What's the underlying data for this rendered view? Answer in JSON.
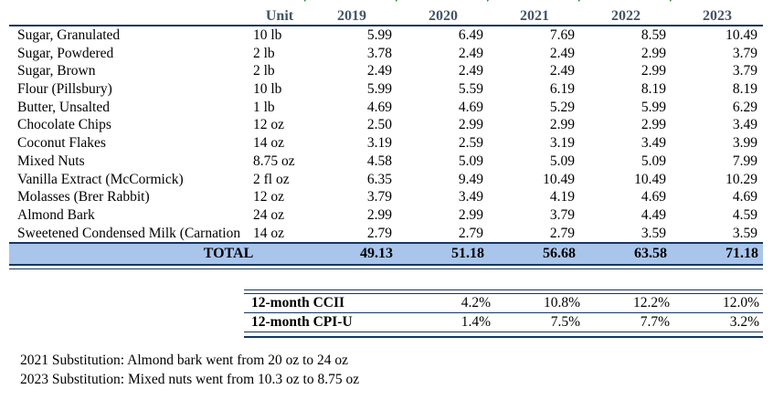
{
  "header": {
    "unit": "Unit",
    "years": [
      "2019",
      "2020",
      "2021",
      "2022",
      "2023"
    ]
  },
  "items": [
    {
      "name": "Sugar, Granulated",
      "unit": "10 lb",
      "prices": [
        "5.99",
        "6.49",
        "7.69",
        "8.59",
        "10.49"
      ]
    },
    {
      "name": "Sugar, Powdered",
      "unit": "2 lb",
      "prices": [
        "3.78",
        "2.49",
        "2.49",
        "2.99",
        "3.79"
      ]
    },
    {
      "name": "Sugar, Brown",
      "unit": "2 lb",
      "prices": [
        "2.49",
        "2.49",
        "2.49",
        "2.99",
        "3.79"
      ]
    },
    {
      "name": "Flour (Pillsbury)",
      "unit": "10 lb",
      "prices": [
        "5.99",
        "5.59",
        "6.19",
        "8.19",
        "8.19"
      ]
    },
    {
      "name": "Butter, Unsalted",
      "unit": "1 lb",
      "prices": [
        "4.69",
        "4.69",
        "5.29",
        "5.99",
        "6.29"
      ]
    },
    {
      "name": "Chocolate Chips",
      "unit": "12 oz",
      "prices": [
        "2.50",
        "2.99",
        "2.99",
        "2.99",
        "3.49"
      ]
    },
    {
      "name": "Coconut Flakes",
      "unit": "14 oz",
      "prices": [
        "3.19",
        "2.59",
        "3.19",
        "3.49",
        "3.99"
      ]
    },
    {
      "name": "Mixed Nuts",
      "unit": "8.75 oz",
      "prices": [
        "4.58",
        "5.09",
        "5.09",
        "5.09",
        "7.99"
      ]
    },
    {
      "name": "Vanilla Extract (McCormick)",
      "unit": "2 fl oz",
      "prices": [
        "6.35",
        "9.49",
        "10.49",
        "10.49",
        "10.29"
      ]
    },
    {
      "name": "Molasses (Brer Rabbit)",
      "unit": "12 oz",
      "prices": [
        "3.79",
        "3.49",
        "4.19",
        "4.69",
        "4.69"
      ]
    },
    {
      "name": "Almond Bark",
      "unit": "24 oz",
      "prices": [
        "2.99",
        "2.99",
        "3.79",
        "4.49",
        "4.59"
      ]
    },
    {
      "name": "Sweetened Condensed Milk (Carnation",
      "unit": "14 oz",
      "prices": [
        "2.79",
        "2.79",
        "2.79",
        "3.59",
        "3.59"
      ]
    }
  ],
  "total": {
    "label": "TOTAL",
    "values": [
      "49.13",
      "51.18",
      "56.68",
      "63.58",
      "71.18"
    ]
  },
  "indices": [
    {
      "label": "12-month CCII",
      "values": [
        "4.2%",
        "10.8%",
        "12.2%",
        "12.0%"
      ]
    },
    {
      "label": "12-month CPI-U",
      "values": [
        "1.4%",
        "7.5%",
        "7.7%",
        "3.2%"
      ]
    }
  ],
  "notes": [
    "2021 Substitution: Almond bark went from 20 oz to 24 oz",
    "2023 Substitution: Mixed nuts went from 10.3 oz to 8.75 oz"
  ],
  "colors": {
    "total_fill": "#A9C5EC",
    "border_navy": "#17375E",
    "header_text": "#44546A",
    "flag_green": "#2E8B3E"
  }
}
